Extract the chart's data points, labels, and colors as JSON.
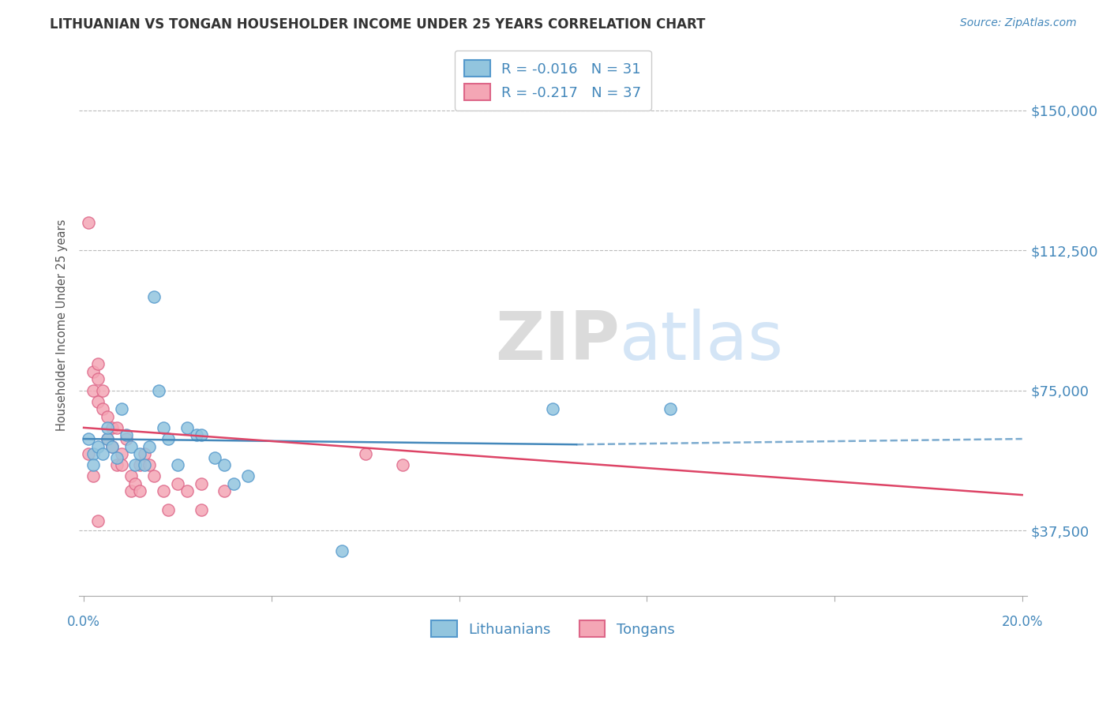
{
  "title": "LITHUANIAN VS TONGAN HOUSEHOLDER INCOME UNDER 25 YEARS CORRELATION CHART",
  "source": "Source: ZipAtlas.com",
  "ylabel": "Householder Income Under 25 years",
  "ytick_labels": [
    "$37,500",
    "$75,000",
    "$112,500",
    "$150,000"
  ],
  "ytick_values": [
    37500,
    75000,
    112500,
    150000
  ],
  "ylim": [
    20000,
    165000
  ],
  "xlim": [
    -0.001,
    0.201
  ],
  "watermark_zip": "ZIP",
  "watermark_atlas": "atlas",
  "legend_blue_R": "R = -0.016",
  "legend_blue_N": "N = 31",
  "legend_pink_R": "R = -0.217",
  "legend_pink_N": "N = 37",
  "blue_color": "#92c5de",
  "pink_color": "#f4a6b5",
  "blue_edge_color": "#5599cc",
  "pink_edge_color": "#dd6688",
  "blue_line_color": "#4488bb",
  "pink_line_color": "#dd4466",
  "blue_scatter": [
    [
      0.001,
      62000
    ],
    [
      0.002,
      58000
    ],
    [
      0.002,
      55000
    ],
    [
      0.003,
      60000
    ],
    [
      0.004,
      58000
    ],
    [
      0.005,
      62000
    ],
    [
      0.005,
      65000
    ],
    [
      0.006,
      60000
    ],
    [
      0.007,
      57000
    ],
    [
      0.008,
      70000
    ],
    [
      0.009,
      63000
    ],
    [
      0.01,
      60000
    ],
    [
      0.011,
      55000
    ],
    [
      0.012,
      58000
    ],
    [
      0.013,
      55000
    ],
    [
      0.014,
      60000
    ],
    [
      0.015,
      100000
    ],
    [
      0.016,
      75000
    ],
    [
      0.017,
      65000
    ],
    [
      0.018,
      62000
    ],
    [
      0.02,
      55000
    ],
    [
      0.022,
      65000
    ],
    [
      0.024,
      63000
    ],
    [
      0.025,
      63000
    ],
    [
      0.028,
      57000
    ],
    [
      0.03,
      55000
    ],
    [
      0.032,
      50000
    ],
    [
      0.035,
      52000
    ],
    [
      0.055,
      32000
    ],
    [
      0.1,
      70000
    ],
    [
      0.125,
      70000
    ]
  ],
  "pink_scatter": [
    [
      0.001,
      120000
    ],
    [
      0.001,
      58000
    ],
    [
      0.002,
      80000
    ],
    [
      0.002,
      75000
    ],
    [
      0.002,
      52000
    ],
    [
      0.003,
      82000
    ],
    [
      0.003,
      78000
    ],
    [
      0.003,
      72000
    ],
    [
      0.004,
      75000
    ],
    [
      0.004,
      70000
    ],
    [
      0.005,
      68000
    ],
    [
      0.005,
      62000
    ],
    [
      0.006,
      65000
    ],
    [
      0.006,
      60000
    ],
    [
      0.007,
      65000
    ],
    [
      0.007,
      55000
    ],
    [
      0.008,
      58000
    ],
    [
      0.008,
      55000
    ],
    [
      0.009,
      62000
    ],
    [
      0.01,
      52000
    ],
    [
      0.01,
      48000
    ],
    [
      0.011,
      50000
    ],
    [
      0.012,
      55000
    ],
    [
      0.012,
      48000
    ],
    [
      0.013,
      58000
    ],
    [
      0.014,
      55000
    ],
    [
      0.015,
      52000
    ],
    [
      0.017,
      48000
    ],
    [
      0.018,
      43000
    ],
    [
      0.02,
      50000
    ],
    [
      0.022,
      48000
    ],
    [
      0.025,
      43000
    ],
    [
      0.025,
      50000
    ],
    [
      0.03,
      48000
    ],
    [
      0.06,
      58000
    ],
    [
      0.068,
      55000
    ],
    [
      0.003,
      40000
    ]
  ],
  "blue_line": [
    [
      0.0,
      62000
    ],
    [
      0.105,
      60500
    ]
  ],
  "blue_line_dashed": [
    [
      0.105,
      60500
    ],
    [
      0.2,
      62000
    ]
  ],
  "pink_line": [
    [
      0.0,
      65000
    ],
    [
      0.2,
      47000
    ]
  ],
  "background_color": "#ffffff",
  "grid_color": "#bbbbbb",
  "text_color_blue": "#4488bb",
  "title_color": "#333333",
  "marker_size": 120
}
